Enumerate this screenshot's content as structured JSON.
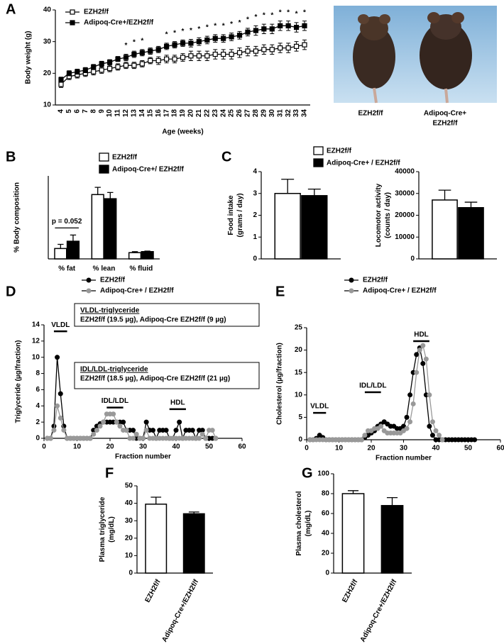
{
  "panels": [
    "A",
    "B",
    "C",
    "D",
    "E",
    "F",
    "G"
  ],
  "photo_labels": [
    [
      "EZH2f/f"
    ],
    [
      "Adipoq-Cre+",
      "EZH2f/f"
    ]
  ],
  "chart_data": [
    {
      "type": "line",
      "ylabel": "Body weight (g)",
      "xlabel": "Age (weeks)",
      "categories": [
        "4",
        "5",
        "6",
        "7",
        "8",
        "9",
        "10",
        "11",
        "12",
        "13",
        "14",
        "15",
        "16",
        "17",
        "18",
        "19",
        "20",
        "21",
        "22",
        "23",
        "24",
        "25",
        "26",
        "27",
        "28",
        "29",
        "30",
        "31",
        "32",
        "33",
        "34"
      ],
      "ylim": [
        10,
        40
      ],
      "yticks": [
        10,
        20,
        30,
        40
      ],
      "series": [
        {
          "name": "EZH2f/f",
          "color": "#000000",
          "marker": "open-square",
          "values": [
            16.5,
            19,
            19.5,
            20,
            20.5,
            21,
            21.5,
            22,
            22.5,
            22.5,
            23,
            24,
            24,
            24.5,
            24.5,
            25,
            25.5,
            25.5,
            25.5,
            26,
            26,
            26,
            26.5,
            27,
            27,
            27.5,
            27.5,
            28,
            28,
            28.5,
            29
          ],
          "errors": [
            1,
            1,
            1,
            1,
            1,
            1,
            1,
            1,
            1,
            1,
            1,
            1,
            1.2,
            1.2,
            1.2,
            1.2,
            1.5,
            1.5,
            1.5,
            1.5,
            1.5,
            1.5,
            1.5,
            1.5,
            1.5,
            1.5,
            1.5,
            1.5,
            1.5,
            1.5,
            1.5
          ]
        },
        {
          "name": "Adipoq-Cre+/EZH2f/f",
          "color": "#000000",
          "marker": "filled-square",
          "values": [
            18,
            20,
            20.5,
            21,
            22,
            23,
            23.5,
            24.5,
            25,
            26,
            26.5,
            27,
            27.5,
            28.5,
            29,
            29.5,
            29.5,
            30,
            30.5,
            31,
            31,
            31.5,
            32,
            33,
            33.5,
            34,
            34,
            35,
            35,
            34.5,
            35
          ],
          "errors": [
            0.8,
            0.8,
            0.8,
            0.8,
            0.8,
            0.8,
            0.8,
            0.8,
            1,
            1,
            1,
            1,
            1,
            1,
            1,
            1,
            1.2,
            1.2,
            1.2,
            1.2,
            1.2,
            1.2,
            1.2,
            1.2,
            1.5,
            1.5,
            1.5,
            1.5,
            1.5,
            1.5,
            1.5
          ]
        }
      ],
      "significance": {
        "label": "*",
        "categories": [
          "12",
          "13",
          "14",
          "17",
          "18",
          "19",
          "20",
          "21",
          "22",
          "23",
          "24",
          "25",
          "26",
          "27",
          "28",
          "29",
          "30",
          "31",
          "32",
          "33",
          "34"
        ]
      }
    },
    {
      "type": "bar",
      "ylabel": "% Body composition",
      "categories": [
        "% fat",
        "% lean",
        "% fluid"
      ],
      "ylim": [
        0,
        80
      ],
      "series": [
        {
          "name": "EZH2f/f",
          "color": "#ffffff",
          "values": [
            10,
            62,
            6
          ],
          "errors": [
            4,
            7,
            1
          ]
        },
        {
          "name": "Adipoq-Cre+/ EZH2f/f",
          "color": "#000000",
          "values": [
            17,
            58,
            7
          ],
          "errors": [
            6,
            6,
            0.5
          ]
        }
      ],
      "annotation": "p = 0.052"
    },
    {
      "type": "bar",
      "ylabel": [
        "Food intake",
        "(grams / day)"
      ],
      "ylim": [
        0,
        4
      ],
      "yticks": [
        0,
        1,
        2,
        3,
        4
      ],
      "series": [
        {
          "name": "EZH2f/f",
          "color": "#ffffff",
          "values": [
            3.0
          ],
          "errors": [
            0.65
          ]
        },
        {
          "name": "Adipoq-Cre+ / EZH2f/f",
          "color": "#000000",
          "values": [
            2.9
          ],
          "errors": [
            0.3
          ]
        }
      ]
    },
    {
      "type": "bar",
      "ylabel": [
        "Locomotor activity",
        "(counts / day)"
      ],
      "ylim": [
        0,
        40000
      ],
      "yticks": [
        0,
        10000,
        20000,
        30000,
        40000
      ],
      "series": [
        {
          "color": "#ffffff",
          "values": [
            27000
          ],
          "errors": [
            4500
          ]
        },
        {
          "color": "#000000",
          "values": [
            23500
          ],
          "errors": [
            2500
          ]
        }
      ]
    },
    {
      "type": "line",
      "ylabel": "Triglyceride (µg/fraction)",
      "xlabel": "Fraction number",
      "x": [
        1,
        2,
        3,
        4,
        5,
        6,
        7,
        8,
        9,
        10,
        11,
        12,
        13,
        14,
        15,
        16,
        17,
        18,
        19,
        20,
        21,
        22,
        23,
        24,
        25,
        26,
        27,
        28,
        29,
        30,
        31,
        32,
        33,
        34,
        35,
        36,
        37,
        38,
        39,
        40,
        41,
        42,
        43,
        44,
        45,
        46,
        47,
        48,
        49,
        50,
        51,
        52
      ],
      "xlim": [
        0,
        60
      ],
      "xticks": [
        0,
        10,
        20,
        30,
        40,
        50,
        60
      ],
      "ylim": [
        0,
        14
      ],
      "yticks": [
        0,
        2,
        4,
        6,
        8,
        10,
        12,
        14
      ],
      "series": [
        {
          "name": "EZH2f/f",
          "color": "#000000",
          "marker": "circle",
          "values": [
            0,
            0,
            1.5,
            10,
            5.5,
            1.5,
            0,
            0,
            0,
            0,
            0,
            0,
            0,
            0,
            1,
            1.5,
            1.8,
            2,
            2,
            2,
            2,
            2,
            2,
            2,
            1,
            1,
            1,
            0,
            0,
            0,
            2,
            1,
            1,
            0,
            1,
            1,
            1,
            0,
            0,
            1,
            2,
            0,
            1,
            1,
            1,
            0,
            1,
            1,
            0,
            0,
            0,
            0
          ]
        },
        {
          "name": "Adipoq-Cre+ / EZH2f/f",
          "color": "#999999",
          "marker": "circle",
          "values": [
            0,
            0,
            1,
            4,
            2.5,
            1,
            0,
            0,
            0,
            0,
            0,
            0,
            0,
            0,
            0.5,
            1,
            1.5,
            2,
            3,
            3,
            3,
            2,
            1.5,
            1,
            1,
            0,
            0,
            0.5,
            0,
            0,
            1,
            0,
            0,
            0,
            0,
            0,
            0,
            0,
            0,
            0,
            0,
            0,
            0,
            0,
            0,
            0,
            0,
            0.5,
            0,
            1,
            1,
            0
          ]
        }
      ],
      "annotations": [
        "VLDL",
        "IDL/LDL",
        "HDL"
      ],
      "boxes": [
        {
          "title": "VLDL-triglyceride",
          "text": "EZH2f/f (19.5 µg), Adipoq-Cre EZH2f/f (9 µg)"
        },
        {
          "title": "IDL/LDL-triglyceride",
          "text": "EZH2f/f (18.5 µg), Adipoq-Cre EZH2f/f (21 µg)"
        }
      ]
    },
    {
      "type": "line",
      "ylabel": "Cholesterol (µg/fraction)",
      "xlabel": "Fraction number",
      "x": [
        1,
        2,
        3,
        4,
        5,
        6,
        7,
        8,
        9,
        10,
        11,
        12,
        13,
        14,
        15,
        16,
        17,
        18,
        19,
        20,
        21,
        22,
        23,
        24,
        25,
        26,
        27,
        28,
        29,
        30,
        31,
        32,
        33,
        34,
        35,
        36,
        37,
        38,
        39,
        40,
        41,
        42,
        43,
        44,
        45,
        46,
        47,
        48,
        49,
        50,
        51,
        52
      ],
      "xlim": [
        0,
        60
      ],
      "xticks": [
        0,
        10,
        20,
        30,
        40,
        50,
        60
      ],
      "ylim": [
        0,
        25
      ],
      "yticks": [
        0,
        5,
        10,
        15,
        20,
        25
      ],
      "series": [
        {
          "name": "EZH2f/f",
          "color": "#000000",
          "marker": "circle",
          "values": [
            0,
            0,
            0.3,
            1,
            0.5,
            0,
            0,
            0,
            0,
            0,
            0,
            0,
            0,
            0,
            0,
            0,
            0,
            0.5,
            1,
            1.5,
            2,
            3,
            3.5,
            4,
            3.5,
            3,
            3,
            2.5,
            2.5,
            3,
            5,
            10,
            15,
            19,
            20.5,
            17,
            10,
            3,
            1,
            0,
            0,
            0,
            0,
            0,
            0,
            0,
            0,
            0,
            0,
            0,
            0,
            0
          ]
        },
        {
          "name": "Adipoq-Cre+ / EZH2f/f",
          "color": "#999999",
          "marker": "circle",
          "values": [
            0,
            0,
            0,
            0,
            0,
            0,
            0,
            0,
            0,
            0,
            0,
            0,
            0,
            0,
            0,
            0,
            0,
            1,
            2,
            2,
            2.5,
            2.5,
            3,
            2,
            1.5,
            1.5,
            1.5,
            1.5,
            1.5,
            2,
            2.5,
            4,
            8,
            15,
            20,
            21,
            18,
            10,
            4,
            2,
            1,
            0,
            null,
            null,
            null,
            null,
            null,
            null,
            null,
            null,
            null,
            null
          ]
        }
      ],
      "annotations": [
        "VLDL",
        "IDL/LDL",
        "HDL"
      ]
    },
    {
      "type": "bar",
      "ylabel": [
        "Plasma triglyceride",
        "(mg/dL)"
      ],
      "categories": [
        "EZH2f/f",
        "Adipoq-Cre+/EZH2f/f"
      ],
      "ylim": [
        0,
        50
      ],
      "yticks": [
        0,
        10,
        20,
        30,
        40,
        50
      ],
      "values": [
        39.5,
        34
      ],
      "errors": [
        4,
        1
      ],
      "colors": [
        "#ffffff",
        "#000000"
      ]
    },
    {
      "type": "bar",
      "ylabel": [
        "Plasma cholesterol",
        "(mg/dL)"
      ],
      "categories": [
        "EZH2f/f",
        "Adipoq-Cre+/EZH2f/f"
      ],
      "ylim": [
        0,
        100
      ],
      "yticks": [
        0,
        20,
        40,
        60,
        80,
        100
      ],
      "values": [
        80,
        68
      ],
      "errors": [
        3,
        8
      ],
      "colors": [
        "#ffffff",
        "#000000"
      ]
    }
  ]
}
